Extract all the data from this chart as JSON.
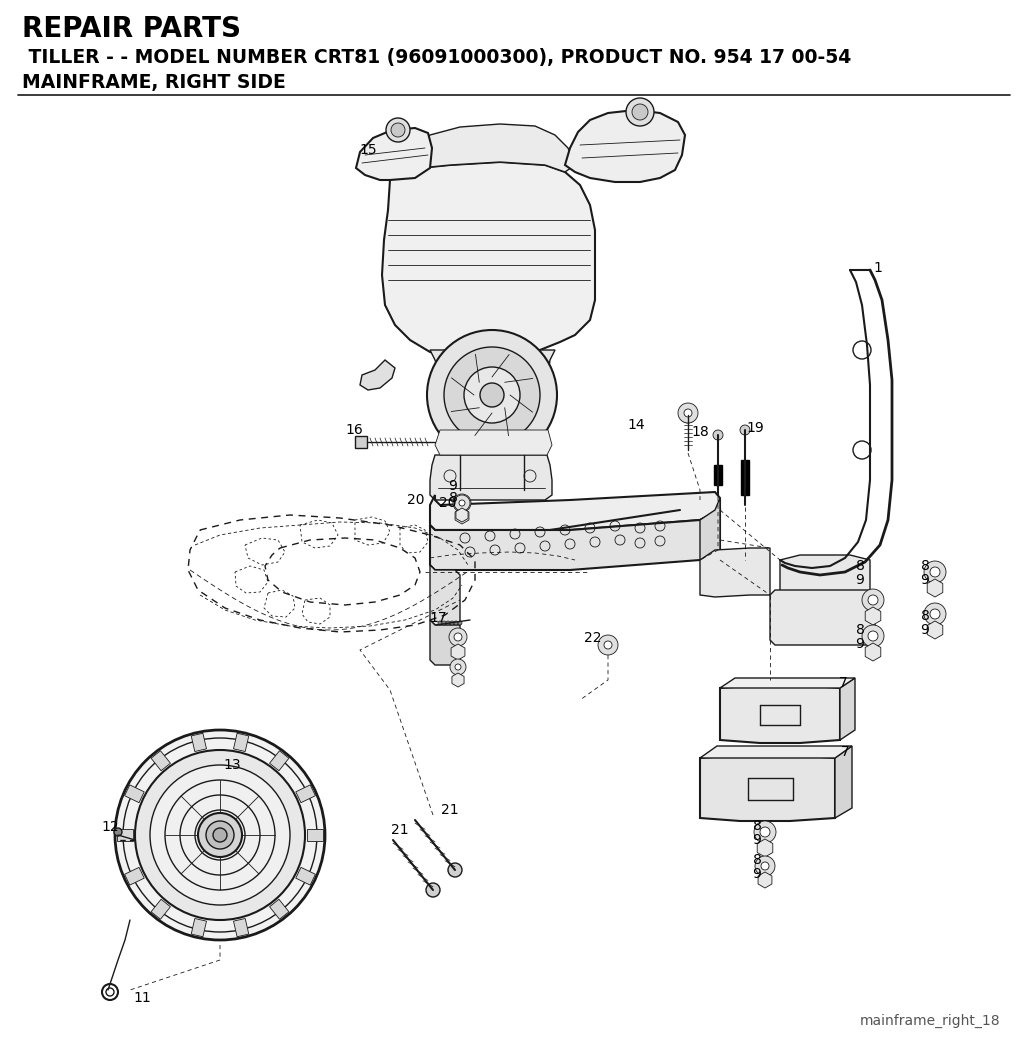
{
  "title1": "REPAIR PARTS",
  "title2": " TILLER - - MODEL NUMBER CRT81 (96091000300), PRODUCT NO. 954 17 00-54",
  "title3": "MAINFRAME, RIGHT SIDE",
  "footer": "mainframe_right_18",
  "bg_color": "#ffffff",
  "line_color": "#1a1a1a",
  "title1_fontsize": 20,
  "title2_fontsize": 13.5,
  "title3_fontsize": 13.5,
  "footer_fontsize": 10,
  "label_fontsize": 10,
  "figsize": [
    10.24,
    10.44
  ],
  "dpi": 100,
  "xlim": [
    0,
    1024
  ],
  "ylim": [
    0,
    1044
  ]
}
